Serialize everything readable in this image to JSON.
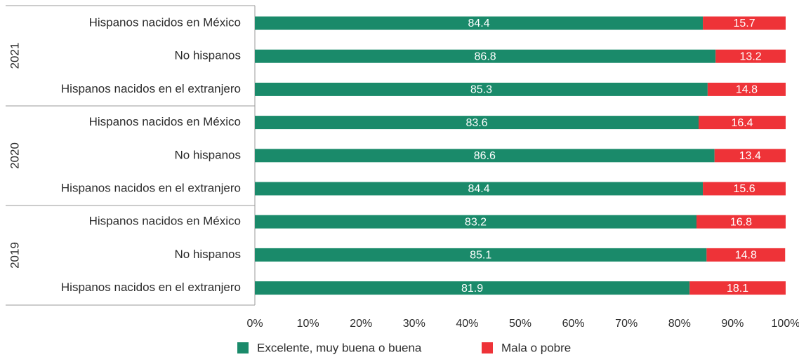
{
  "chart_data": {
    "type": "bar",
    "orientation": "horizontal",
    "stacked": true,
    "groups": [
      {
        "year": "2021",
        "categories": [
          "Hispanos nacidos en México",
          "No hispanos",
          "Hispanos nacidos en el extranjero"
        ],
        "series": [
          {
            "name": "Excelente, muy buena o buena",
            "values": [
              84.4,
              86.8,
              85.3
            ]
          },
          {
            "name": "Mala o pobre",
            "values": [
              15.7,
              13.2,
              14.8
            ]
          }
        ]
      },
      {
        "year": "2020",
        "categories": [
          "Hispanos nacidos en México",
          "No hispanos",
          "Hispanos nacidos en el extranjero"
        ],
        "series": [
          {
            "name": "Excelente, muy buena o buena",
            "values": [
              83.6,
              86.6,
              84.4
            ]
          },
          {
            "name": "Mala o pobre",
            "values": [
              16.4,
              13.4,
              15.6
            ]
          }
        ]
      },
      {
        "year": "2019",
        "categories": [
          "Hispanos nacidos en México",
          "No hispanos",
          "Hispanos nacidos en el extranjero"
        ],
        "series": [
          {
            "name": "Excelente, muy buena o buena",
            "values": [
              83.2,
              85.1,
              81.9
            ]
          },
          {
            "name": "Mala o pobre",
            "values": [
              16.8,
              14.8,
              18.1
            ]
          }
        ]
      }
    ],
    "x_ticks": [
      "0%",
      "10%",
      "20%",
      "30%",
      "40%",
      "50%",
      "60%",
      "70%",
      "80%",
      "90%",
      "100%"
    ],
    "xlim": [
      0,
      100
    ],
    "grid": false,
    "legend_position": "bottom-center",
    "legend": [
      {
        "name": "Excelente, muy buena o buena",
        "color": "#1a8a6a"
      },
      {
        "name": "Mala o pobre",
        "color": "#ee3338"
      }
    ]
  }
}
